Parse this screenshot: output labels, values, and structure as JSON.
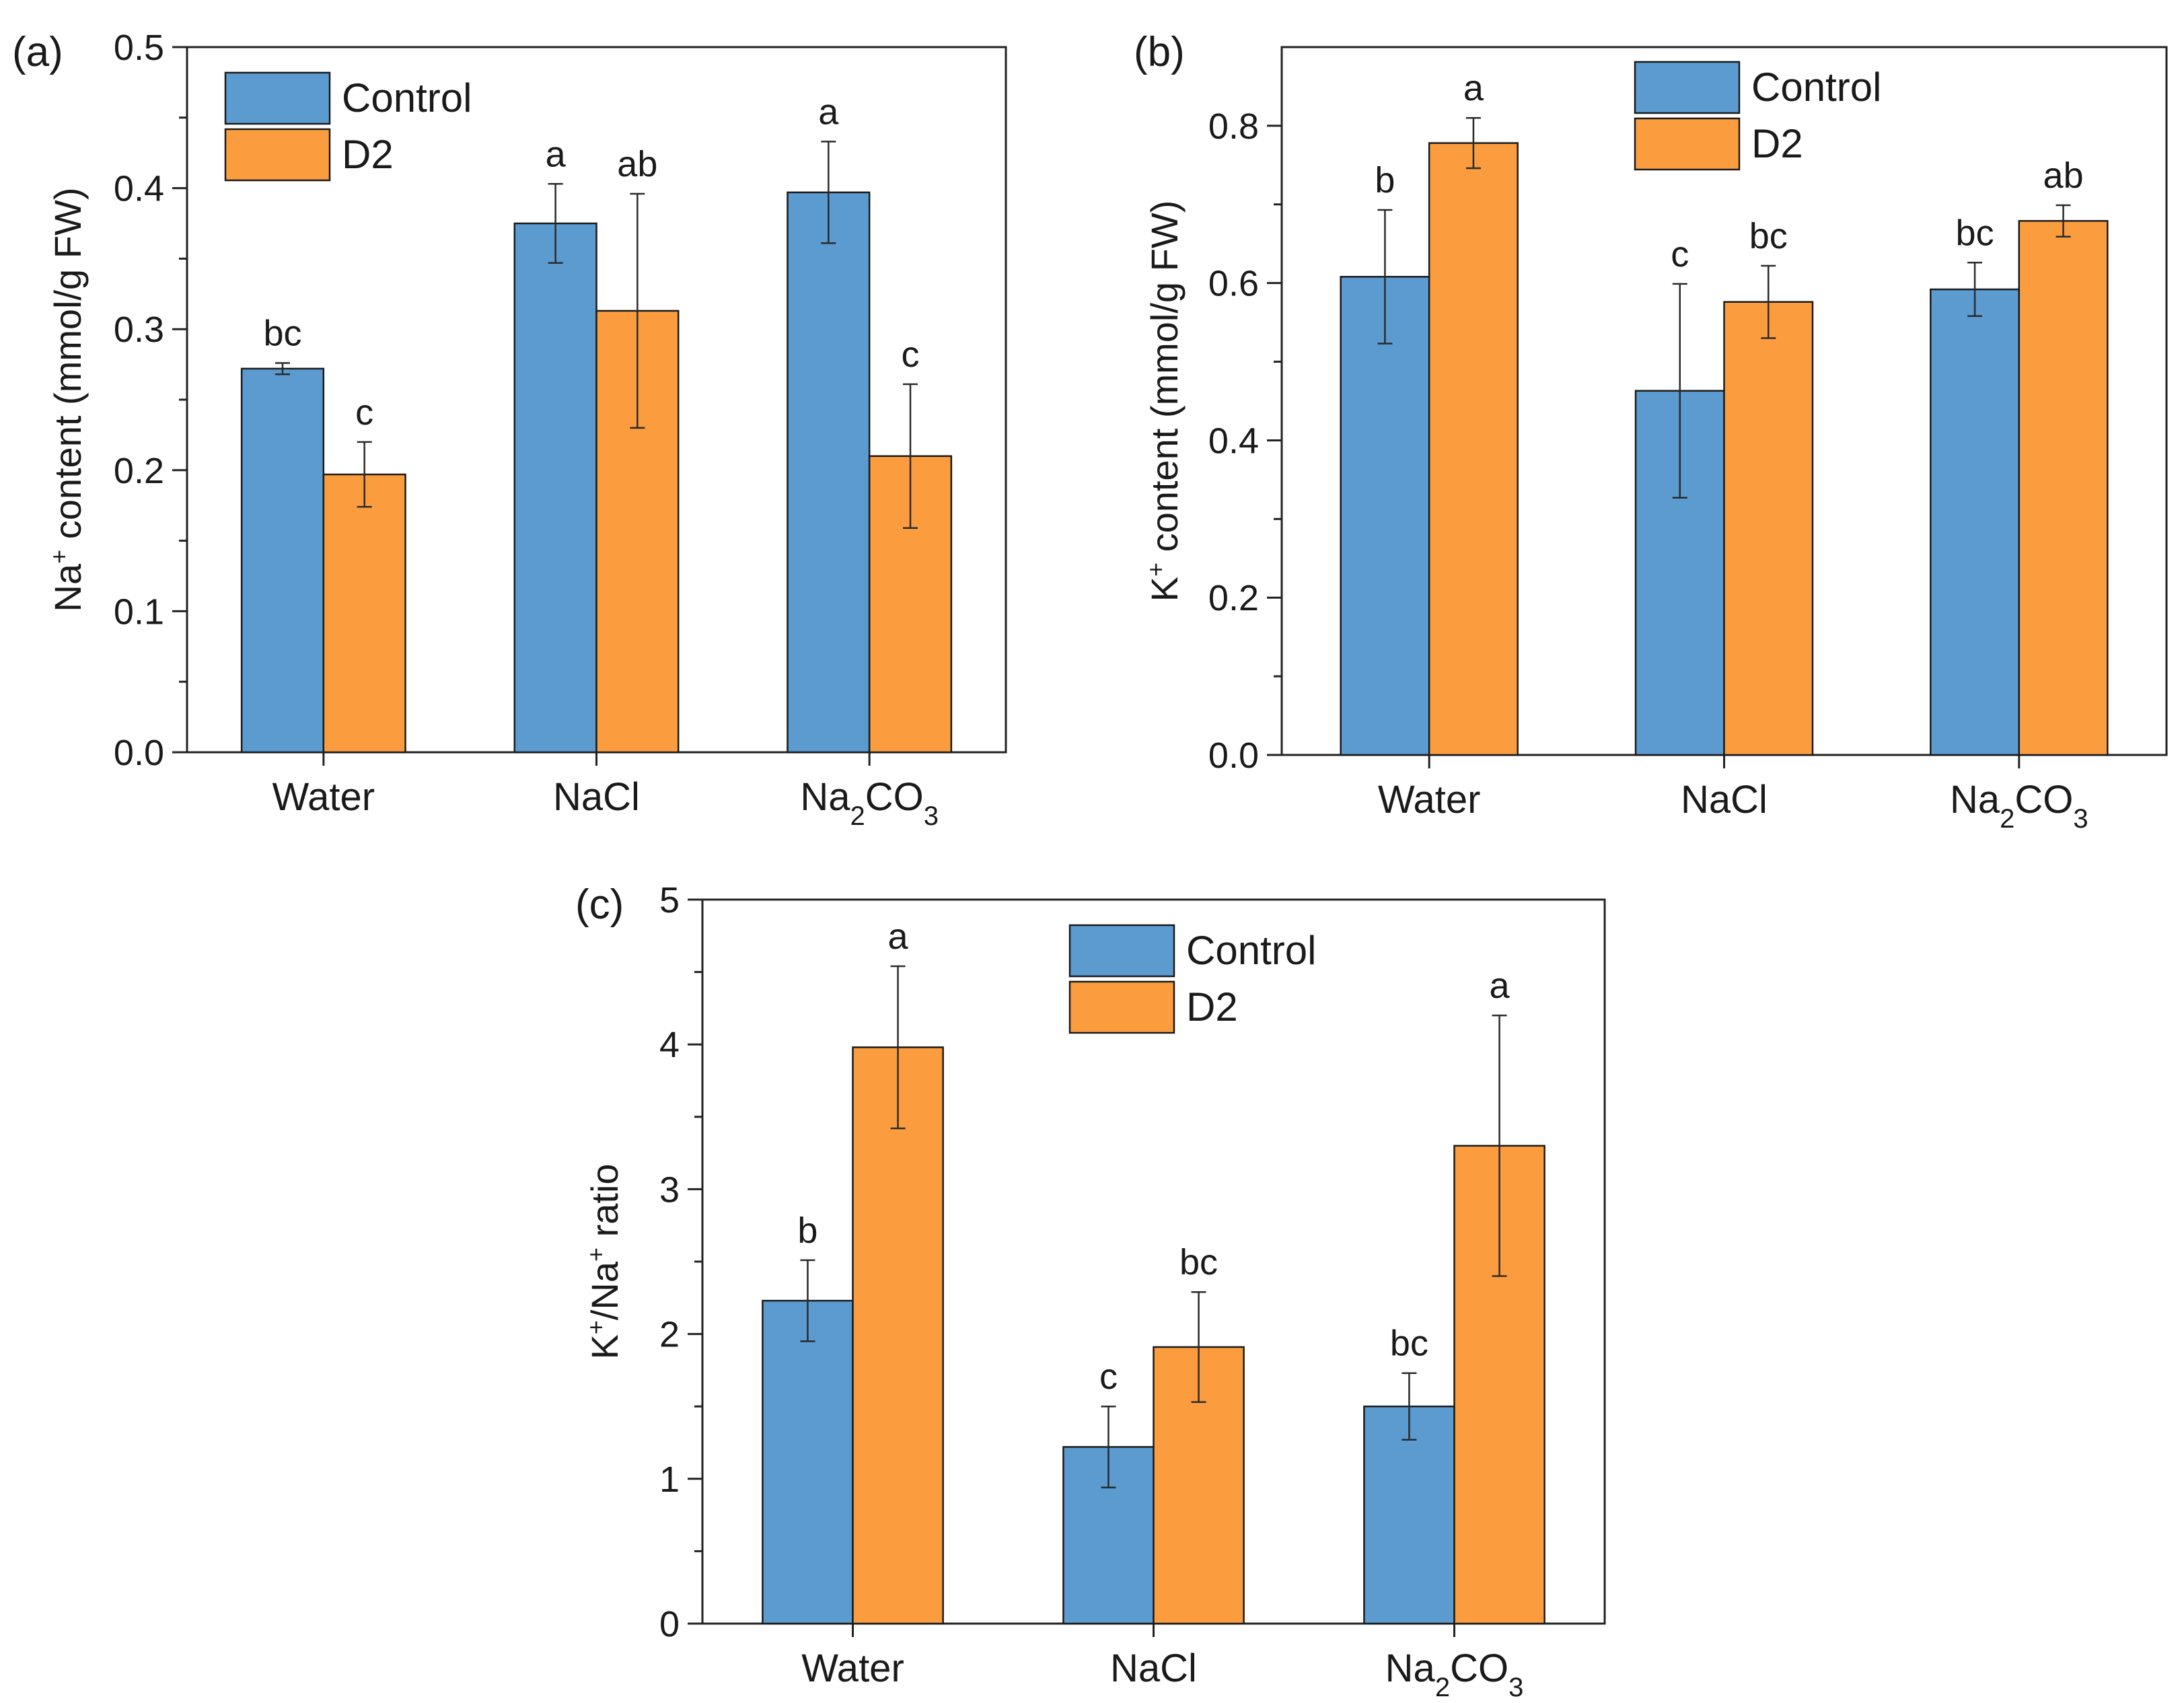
{
  "colors": {
    "control": "#5b9bd0",
    "d2": "#fb9d3e"
  },
  "legend": {
    "control": "Control",
    "d2": "D2"
  },
  "chart_data": [
    {
      "id": "a",
      "panel_label": "(a)",
      "type": "bar",
      "ylabel": {
        "main": "Na",
        "sup": "+",
        "rest": " content (mmol/g FW)"
      },
      "ylim": [
        0,
        0.5
      ],
      "yticks": [
        0.0,
        0.1,
        0.2,
        0.3,
        0.4,
        0.5
      ],
      "ytick_labels": [
        "0.0",
        "0.1",
        "0.2",
        "0.3",
        "0.4",
        "0.5"
      ],
      "categories": [
        {
          "main": "Water",
          "sub": "",
          "rest": ""
        },
        {
          "main": "NaCl",
          "sub": "",
          "rest": ""
        },
        {
          "main": "Na",
          "sub": "2",
          "rest": "CO",
          "sub2": "3"
        }
      ],
      "series": [
        {
          "name": "Control",
          "values": [
            0.272,
            0.375,
            0.397
          ],
          "errors": [
            0.004,
            0.028,
            0.036
          ],
          "letters": [
            "bc",
            "a",
            "a"
          ]
        },
        {
          "name": "D2",
          "values": [
            0.197,
            0.313,
            0.21
          ],
          "errors": [
            0.023,
            0.083,
            0.051
          ],
          "letters": [
            "c",
            "ab",
            "c"
          ]
        }
      ]
    },
    {
      "id": "b",
      "panel_label": "(b)",
      "type": "bar",
      "ylabel": {
        "main": "K",
        "sup": "+",
        "rest": " content (mmol/g FW)"
      },
      "ylim": [
        0,
        0.9
      ],
      "yticks": [
        0.0,
        0.2,
        0.4,
        0.6,
        0.8
      ],
      "ytick_labels": [
        "0.0",
        "0.2",
        "0.4",
        "0.6",
        "0.8"
      ],
      "categories": [
        {
          "main": "Water",
          "sub": "",
          "rest": ""
        },
        {
          "main": "NaCl",
          "sub": "",
          "rest": ""
        },
        {
          "main": "Na",
          "sub": "2",
          "rest": "CO",
          "sub2": "3"
        }
      ],
      "series": [
        {
          "name": "Control",
          "values": [
            0.608,
            0.463,
            0.592
          ],
          "errors": [
            0.085,
            0.136,
            0.034
          ],
          "letters": [
            "b",
            "c",
            "bc"
          ]
        },
        {
          "name": "D2",
          "values": [
            0.778,
            0.576,
            0.679
          ],
          "errors": [
            0.032,
            0.046,
            0.02
          ],
          "letters": [
            "a",
            "bc",
            "ab"
          ]
        }
      ]
    },
    {
      "id": "c",
      "panel_label": "(c)",
      "type": "bar",
      "ylabel": {
        "main": "K",
        "sup": "+",
        "rest": "/Na",
        "sup2": "+",
        "rest2": " ratio"
      },
      "ylim": [
        0,
        5
      ],
      "yticks": [
        0,
        1,
        2,
        3,
        4,
        5
      ],
      "ytick_labels": [
        "0",
        "1",
        "2",
        "3",
        "4",
        "5"
      ],
      "categories": [
        {
          "main": "Water",
          "sub": "",
          "rest": ""
        },
        {
          "main": "NaCl",
          "sub": "",
          "rest": ""
        },
        {
          "main": "Na",
          "sub": "2",
          "rest": "CO",
          "sub2": "3"
        }
      ],
      "series": [
        {
          "name": "Control",
          "values": [
            2.23,
            1.22,
            1.5
          ],
          "errors": [
            0.28,
            0.28,
            0.23
          ],
          "letters": [
            "b",
            "c",
            "bc"
          ]
        },
        {
          "name": "D2",
          "values": [
            3.98,
            1.91,
            3.3
          ],
          "errors": [
            0.56,
            0.38,
            0.9
          ],
          "letters": [
            "a",
            "bc",
            "a"
          ]
        }
      ]
    }
  ]
}
